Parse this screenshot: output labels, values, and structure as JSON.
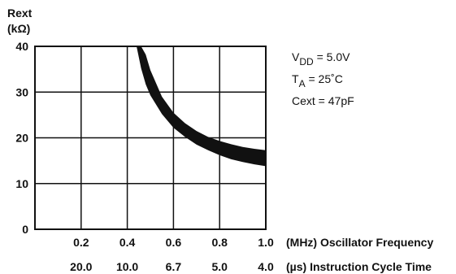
{
  "chart_data": {
    "type": "area",
    "y_axis_label_lines": [
      "Rext",
      "(kΩ)"
    ],
    "y_ticks": [
      "40",
      "30",
      "20",
      "10",
      "0"
    ],
    "ylim": [
      0,
      40
    ],
    "x_ticks_freq": [
      "0.2",
      "0.4",
      "0.6",
      "0.8",
      "1.0"
    ],
    "x_ticks_cycle": [
      "20.0",
      "10.0",
      "6.7",
      "5.0",
      "4.0"
    ],
    "xlim": [
      0,
      1.0
    ],
    "x_axis_label_freq": "(MHz) Oscillator  Frequency",
    "x_axis_label_cycle": "(µs) Instruction Cycle Time",
    "conditions": {
      "vdd": {
        "main": "V",
        "sub": "DD",
        "rest": " = 5.0V"
      },
      "ta": {
        "main": "T",
        "sub": "A",
        "rest": " = 25˚C"
      },
      "cext": "Cext = 47pF"
    },
    "grid": true,
    "band": {
      "x": [
        0.38,
        0.4,
        0.42,
        0.44,
        0.46,
        0.48,
        0.5,
        0.55,
        0.6,
        0.65,
        0.7,
        0.75,
        0.8,
        0.85,
        0.9,
        0.95,
        1.0
      ],
      "upper": [
        40,
        40,
        40,
        40,
        40,
        38.2,
        34.8,
        29.0,
        25.5,
        23.2,
        21.5,
        20.2,
        19.3,
        18.6,
        18.0,
        17.6,
        17.3
      ],
      "lower": [
        40,
        40,
        40,
        40,
        35.2,
        31.7,
        29.3,
        25.2,
        22.2,
        20.2,
        18.5,
        17.3,
        16.2,
        15.3,
        14.7,
        14.2,
        13.8
      ]
    },
    "band_color": "#111111"
  }
}
